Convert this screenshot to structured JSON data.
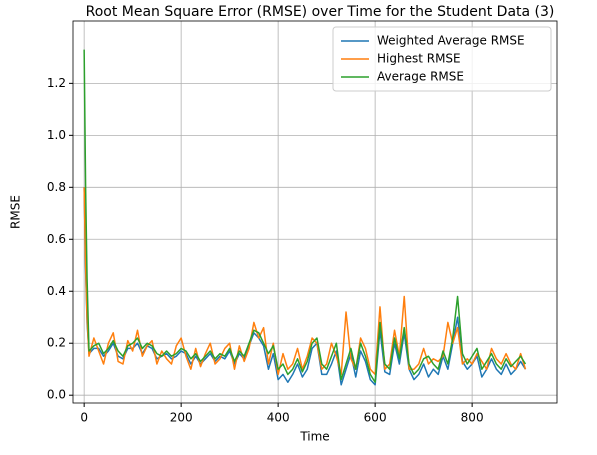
{
  "chart_data": {
    "type": "line",
    "title": "Root Mean Square Error (RMSE) over Time for the Student Data (3)",
    "x_label": "Time",
    "y_label": "RMSE",
    "x": [
      0,
      3,
      6,
      10,
      20,
      30,
      40,
      50,
      60,
      70,
      80,
      90,
      100,
      110,
      120,
      130,
      140,
      150,
      160,
      170,
      180,
      190,
      200,
      210,
      220,
      230,
      240,
      250,
      260,
      270,
      280,
      290,
      300,
      310,
      320,
      330,
      340,
      350,
      360,
      370,
      380,
      390,
      400,
      410,
      420,
      430,
      440,
      450,
      460,
      470,
      480,
      490,
      500,
      510,
      520,
      530,
      540,
      550,
      560,
      570,
      580,
      590,
      600,
      610,
      620,
      630,
      640,
      650,
      660,
      670,
      680,
      690,
      700,
      710,
      720,
      730,
      740,
      750,
      760,
      770,
      780,
      790,
      800,
      810,
      820,
      830,
      840,
      850,
      860,
      870,
      880,
      890,
      900,
      910
    ],
    "series": [
      {
        "name": "Weighted Average RMSE",
        "color": "#1f77b4",
        "values": [
          0.8,
          0.48,
          0.28,
          0.16,
          0.18,
          0.18,
          0.15,
          0.17,
          0.2,
          0.15,
          0.14,
          0.18,
          0.18,
          0.2,
          0.16,
          0.19,
          0.18,
          0.14,
          0.15,
          0.16,
          0.14,
          0.15,
          0.17,
          0.16,
          0.12,
          0.15,
          0.12,
          0.14,
          0.16,
          0.13,
          0.15,
          0.14,
          0.17,
          0.12,
          0.16,
          0.14,
          0.19,
          0.24,
          0.22,
          0.19,
          0.1,
          0.16,
          0.06,
          0.08,
          0.05,
          0.08,
          0.12,
          0.07,
          0.1,
          0.18,
          0.2,
          0.08,
          0.08,
          0.12,
          0.17,
          0.04,
          0.1,
          0.16,
          0.07,
          0.17,
          0.13,
          0.06,
          0.04,
          0.25,
          0.09,
          0.08,
          0.2,
          0.12,
          0.24,
          0.1,
          0.06,
          0.08,
          0.12,
          0.07,
          0.1,
          0.08,
          0.15,
          0.1,
          0.2,
          0.3,
          0.13,
          0.1,
          0.12,
          0.15,
          0.07,
          0.1,
          0.14,
          0.1,
          0.08,
          0.12,
          0.08,
          0.1,
          0.13,
          0.1
        ]
      },
      {
        "name": "Highest RMSE",
        "color": "#ff7f0e",
        "values": [
          0.8,
          0.5,
          0.3,
          0.15,
          0.22,
          0.17,
          0.12,
          0.2,
          0.24,
          0.13,
          0.12,
          0.21,
          0.17,
          0.25,
          0.15,
          0.19,
          0.21,
          0.12,
          0.17,
          0.14,
          0.12,
          0.19,
          0.22,
          0.15,
          0.1,
          0.18,
          0.11,
          0.16,
          0.2,
          0.12,
          0.14,
          0.18,
          0.2,
          0.1,
          0.19,
          0.13,
          0.18,
          0.28,
          0.22,
          0.26,
          0.12,
          0.2,
          0.08,
          0.16,
          0.1,
          0.12,
          0.18,
          0.1,
          0.15,
          0.22,
          0.2,
          0.1,
          0.12,
          0.2,
          0.15,
          0.08,
          0.32,
          0.14,
          0.1,
          0.22,
          0.18,
          0.1,
          0.08,
          0.34,
          0.1,
          0.12,
          0.25,
          0.15,
          0.38,
          0.1,
          0.1,
          0.12,
          0.18,
          0.12,
          0.14,
          0.13,
          0.15,
          0.28,
          0.2,
          0.26,
          0.12,
          0.14,
          0.12,
          0.16,
          0.13,
          0.1,
          0.18,
          0.14,
          0.12,
          0.16,
          0.12,
          0.1,
          0.16,
          0.1
        ]
      },
      {
        "name": "Average RMSE",
        "color": "#2ca02c",
        "values": [
          1.33,
          0.8,
          0.45,
          0.17,
          0.19,
          0.2,
          0.16,
          0.18,
          0.21,
          0.17,
          0.15,
          0.19,
          0.2,
          0.22,
          0.18,
          0.2,
          0.19,
          0.16,
          0.15,
          0.17,
          0.15,
          0.16,
          0.18,
          0.17,
          0.14,
          0.16,
          0.13,
          0.15,
          0.17,
          0.14,
          0.16,
          0.15,
          0.18,
          0.13,
          0.17,
          0.15,
          0.2,
          0.25,
          0.24,
          0.2,
          0.16,
          0.19,
          0.1,
          0.12,
          0.08,
          0.1,
          0.14,
          0.09,
          0.13,
          0.2,
          0.22,
          0.12,
          0.1,
          0.15,
          0.2,
          0.06,
          0.12,
          0.18,
          0.1,
          0.2,
          0.15,
          0.08,
          0.05,
          0.28,
          0.12,
          0.1,
          0.22,
          0.14,
          0.26,
          0.12,
          0.08,
          0.1,
          0.14,
          0.15,
          0.12,
          0.1,
          0.17,
          0.12,
          0.22,
          0.38,
          0.16,
          0.12,
          0.15,
          0.18,
          0.1,
          0.13,
          0.16,
          0.12,
          0.1,
          0.14,
          0.11,
          0.13,
          0.15,
          0.12
        ]
      }
    ],
    "xlim": [
      -23,
      975
    ],
    "xticks": [
      0,
      200,
      400,
      600,
      800
    ],
    "ylim": [
      -0.03,
      1.44
    ],
    "yticks": [
      {
        "value": 0,
        "label": "0.0"
      },
      0.2,
      0.4,
      0.6,
      0.8,
      {
        "value": 1,
        "label": "1.0"
      },
      1.2
    ],
    "grid": true,
    "legend": "upper right"
  }
}
